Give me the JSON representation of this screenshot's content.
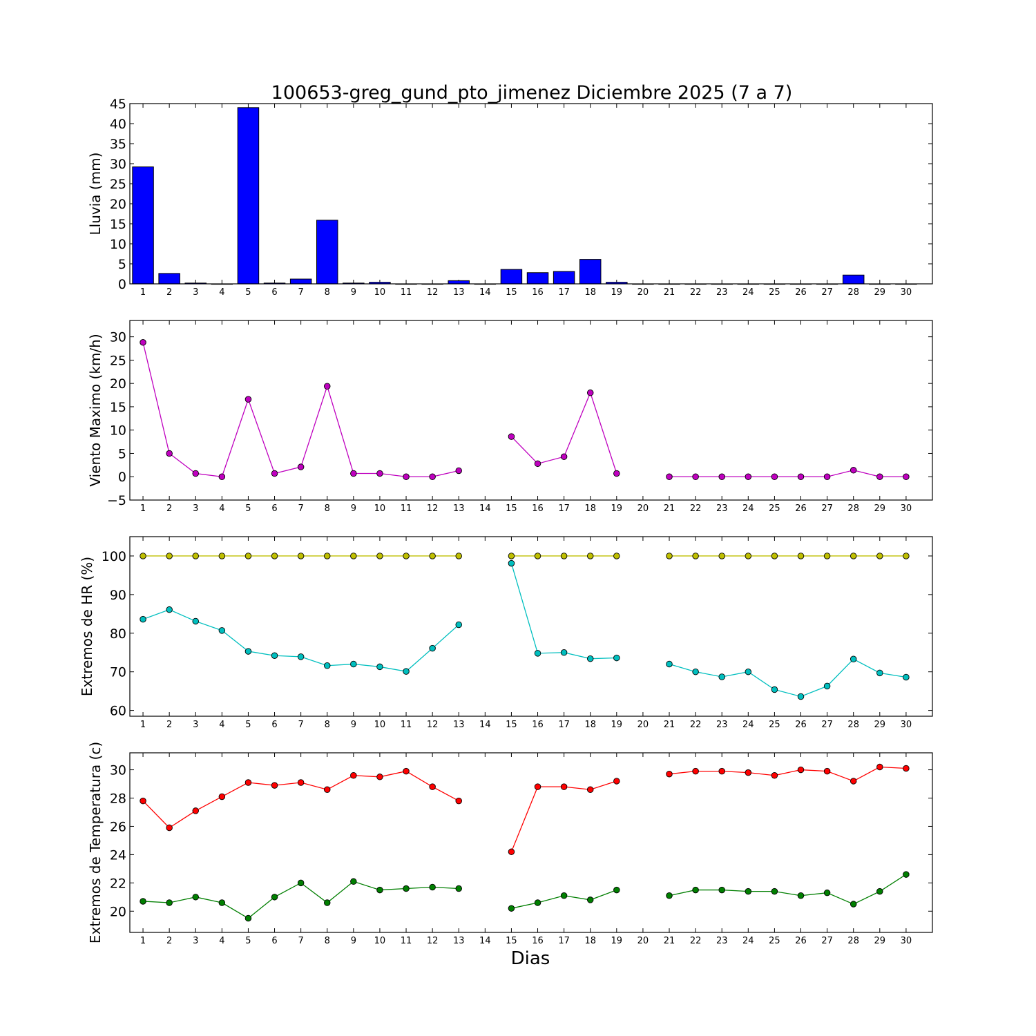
{
  "title": "100653-greg_gund_pto_jimenez Diciembre 2025  (7 a 7)",
  "xlabel": "Dias",
  "chart_data": [
    {
      "type": "bar",
      "ylabel": "Lluvia (mm)",
      "ylim": [
        0,
        45
      ],
      "yticks": [
        "0",
        "5",
        "10",
        "15",
        "20",
        "25",
        "30",
        "35",
        "40",
        "45"
      ],
      "categories": [
        "1",
        "2",
        "3",
        "4",
        "5",
        "6",
        "7",
        "8",
        "9",
        "10",
        "11",
        "12",
        "13",
        "14",
        "15",
        "16",
        "17",
        "18",
        "19",
        "20",
        "21",
        "22",
        "23",
        "24",
        "25",
        "26",
        "27",
        "28",
        "29",
        "30"
      ],
      "series": [
        {
          "color": "#0000ff",
          "values": [
            29.2,
            2.6,
            0.2,
            0,
            44,
            0.2,
            1.2,
            15.9,
            0.2,
            0.4,
            0,
            0,
            0.8,
            0,
            3.6,
            2.8,
            3.1,
            6.1,
            0.4,
            0,
            0,
            0,
            0,
            0,
            0,
            0,
            0,
            2.2,
            0,
            0
          ]
        }
      ]
    },
    {
      "type": "line",
      "ylabel": "Viento Maximo (km/h)",
      "ylim": [
        -5,
        33.5
      ],
      "yticks": [
        "−5",
        "0",
        "5",
        "10",
        "15",
        "20",
        "25",
        "30"
      ],
      "categories": [
        "1",
        "2",
        "3",
        "4",
        "5",
        "6",
        "7",
        "8",
        "9",
        "10",
        "11",
        "12",
        "13",
        "14",
        "15",
        "16",
        "17",
        "18",
        "19",
        "20",
        "21",
        "22",
        "23",
        "24",
        "25",
        "26",
        "27",
        "28",
        "29",
        "30"
      ],
      "series": [
        {
          "color": "#bf00bf",
          "values": [
            28.8,
            5.0,
            0.7,
            0,
            16.6,
            0.7,
            2.1,
            19.4,
            0.7,
            0.7,
            0,
            0,
            1.3,
            null,
            8.6,
            2.8,
            4.3,
            18.0,
            0.7,
            null,
            0,
            0,
            0,
            0,
            0,
            0,
            0,
            1.4,
            0,
            0
          ]
        }
      ]
    },
    {
      "type": "line",
      "ylabel": "Extremos de HR (%)",
      "ylim": [
        58.5,
        105
      ],
      "yticks": [
        "60",
        "70",
        "80",
        "90",
        "100"
      ],
      "categories": [
        "1",
        "2",
        "3",
        "4",
        "5",
        "6",
        "7",
        "8",
        "9",
        "10",
        "11",
        "12",
        "13",
        "14",
        "15",
        "16",
        "17",
        "18",
        "19",
        "20",
        "21",
        "22",
        "23",
        "24",
        "25",
        "26",
        "27",
        "28",
        "29",
        "30"
      ],
      "series": [
        {
          "color": "#bfbf00",
          "values": [
            100,
            100,
            100,
            100,
            100,
            100,
            100,
            100,
            100,
            100,
            100,
            100,
            100,
            null,
            100,
            100,
            100,
            100,
            100,
            null,
            100,
            100,
            100,
            100,
            100,
            100,
            100,
            100,
            100,
            100
          ]
        },
        {
          "color": "#00bfbf",
          "values": [
            83.6,
            86.1,
            83.1,
            80.7,
            75.3,
            74.2,
            73.9,
            71.6,
            72.0,
            71.3,
            70.1,
            76.1,
            82.2,
            null,
            98.1,
            74.8,
            75.0,
            73.4,
            73.6,
            null,
            72.0,
            70.0,
            68.7,
            70.0,
            65.4,
            63.6,
            66.3,
            73.3,
            69.7,
            68.6
          ]
        }
      ]
    },
    {
      "type": "line",
      "ylabel": "Extremos de Temperatura (c)",
      "ylim": [
        18.5,
        31.2
      ],
      "yticks": [
        "20",
        "22",
        "24",
        "26",
        "28",
        "30"
      ],
      "categories": [
        "1",
        "2",
        "3",
        "4",
        "5",
        "6",
        "7",
        "8",
        "9",
        "10",
        "11",
        "12",
        "13",
        "14",
        "15",
        "16",
        "17",
        "18",
        "19",
        "20",
        "21",
        "22",
        "23",
        "24",
        "25",
        "26",
        "27",
        "28",
        "29",
        "30"
      ],
      "series": [
        {
          "color": "#ff0000",
          "values": [
            27.8,
            25.9,
            27.1,
            28.1,
            29.1,
            28.9,
            29.1,
            28.6,
            29.6,
            29.5,
            29.9,
            28.8,
            27.8,
            null,
            24.2,
            28.8,
            28.8,
            28.6,
            29.2,
            null,
            29.7,
            29.9,
            29.9,
            29.8,
            29.6,
            30.0,
            29.9,
            29.2,
            30.2,
            30.1
          ]
        },
        {
          "color": "#007f00",
          "values": [
            20.7,
            20.6,
            21.0,
            20.6,
            19.5,
            21.0,
            22.0,
            20.6,
            22.1,
            21.5,
            21.6,
            21.7,
            21.6,
            null,
            20.2,
            20.6,
            21.1,
            20.8,
            21.5,
            null,
            21.1,
            21.5,
            21.5,
            21.4,
            21.4,
            21.1,
            21.3,
            20.5,
            21.4,
            22.6
          ]
        }
      ]
    }
  ]
}
